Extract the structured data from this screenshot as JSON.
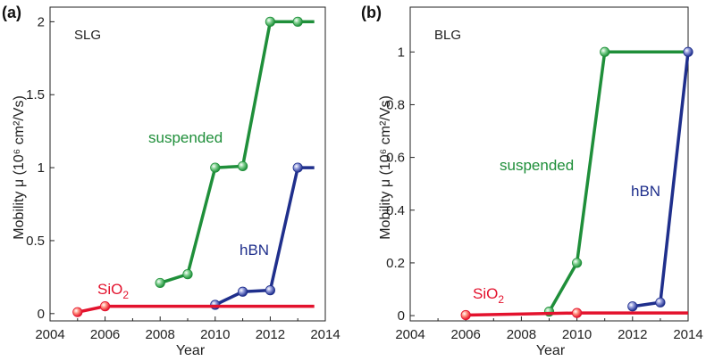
{
  "colors": {
    "suspended": "#1f8f3a",
    "hbn": "#1f2f8c",
    "sio2": "#e3122d"
  },
  "chart_data": [
    {
      "type": "line",
      "panel_label": "(a)",
      "inset_label": "SLG",
      "xlabel": "Year",
      "ylabel": "Mobility μ (10⁶ cm²/Vs)",
      "xlim": [
        2004,
        2014
      ],
      "ylim": [
        -0.05,
        2.1
      ],
      "xticks": [
        "2004",
        "2006",
        "2008",
        "2010",
        "2012",
        "2014"
      ],
      "yticks": [
        "0",
        "0.5",
        "1",
        "1.5",
        "2"
      ],
      "series": [
        {
          "name": "suspended",
          "color_key": "suspended",
          "points": [
            [
              2008,
              0.21
            ],
            [
              2009,
              0.27
            ],
            [
              2010,
              1.0
            ],
            [
              2011,
              1.01
            ],
            [
              2012,
              2.0
            ],
            [
              2013,
              2.0
            ]
          ],
          "line_end": 2013.6
        },
        {
          "name": "hBN",
          "color_key": "hbn",
          "points": [
            [
              2010,
              0.06
            ],
            [
              2011,
              0.15
            ],
            [
              2012,
              0.16
            ],
            [
              2013,
              1.0
            ]
          ],
          "line_end": 2013.6
        },
        {
          "name": "SiO₂",
          "color_key": "sio2",
          "points": [
            [
              2005,
              0.01
            ],
            [
              2006,
              0.05
            ]
          ],
          "line_end": 2013.6,
          "line_end_value": 0.05
        }
      ]
    },
    {
      "type": "line",
      "panel_label": "(b)",
      "inset_label": "BLG",
      "xlabel": "Year",
      "ylabel": "Mobility μ (10⁶ cm²/Vs)",
      "xlim": [
        2004,
        2014
      ],
      "ylim": [
        -0.02,
        1.17
      ],
      "xticks": [
        "2004",
        "2006",
        "2008",
        "2010",
        "2012",
        "2014"
      ],
      "yticks": [
        "0",
        "0.2",
        "0.4",
        "0.6",
        "0.8",
        "1"
      ],
      "series": [
        {
          "name": "suspended",
          "color_key": "suspended",
          "points": [
            [
              2009,
              0.015
            ],
            [
              2010,
              0.2
            ],
            [
              2011,
              1.0
            ]
          ],
          "line_end": 2014,
          "line_end_value": 1.0
        },
        {
          "name": "hBN",
          "color_key": "hbn",
          "points": [
            [
              2012,
              0.035
            ],
            [
              2013,
              0.05
            ],
            [
              2014,
              1.0
            ]
          ]
        },
        {
          "name": "SiO₂",
          "color_key": "sio2",
          "points": [
            [
              2006,
              0.002
            ],
            [
              2010,
              0.01
            ]
          ],
          "line_end": 2014,
          "line_end_value": 0.01
        }
      ]
    }
  ]
}
